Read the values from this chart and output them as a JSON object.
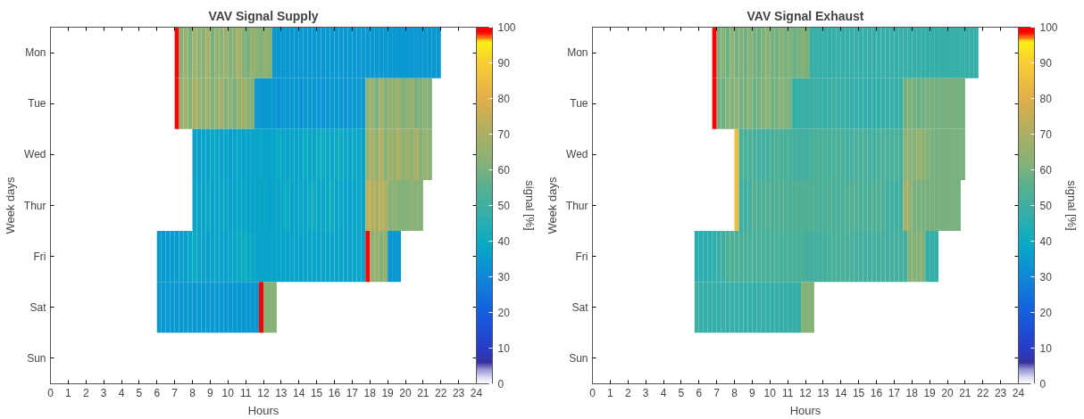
{
  "chart_data": [
    {
      "type": "heatmap",
      "title": "VAV Signal Supply",
      "xlabel": "Hours",
      "ylabel": "Week days",
      "clabel": "signal [%]",
      "x": [
        5.875,
        6.125,
        6.375,
        6.625,
        6.875,
        7.125,
        7.375,
        7.625,
        7.875,
        8.125,
        8.375,
        8.625,
        8.875,
        9.125,
        9.375,
        9.625,
        9.875,
        10.125,
        10.375,
        10.625,
        10.875,
        11.125,
        11.375,
        11.625,
        11.875,
        12.125,
        12.375,
        12.625,
        12.875,
        13.125,
        13.375,
        13.625,
        13.875,
        14.125,
        14.375,
        14.625,
        14.875,
        15.125,
        15.375,
        15.625,
        15.875,
        16.125,
        16.375,
        16.625,
        16.875,
        17.125,
        17.375,
        17.625,
        17.875,
        18.125,
        18.375,
        18.625,
        18.875,
        19.125,
        19.375,
        19.625,
        19.875,
        20.125,
        20.375,
        20.625,
        20.875,
        21.125,
        21.375,
        21.625,
        21.875
      ],
      "y_categories": [
        "Mon",
        "Tue",
        "Wed",
        "Thur",
        "Fri",
        "Sat",
        "Sun"
      ],
      "cells": [
        [
          null,
          null,
          null,
          null,
          null,
          100,
          62,
          66,
          60,
          68,
          64,
          62,
          70,
          60,
          65,
          63,
          67,
          61,
          64,
          69,
          62,
          60,
          66,
          63,
          61,
          65,
          62,
          34,
          34,
          34,
          34,
          34,
          34,
          34,
          34,
          34,
          34,
          34,
          34,
          34,
          34,
          34,
          34,
          34,
          34,
          34,
          34,
          34,
          34,
          34,
          34,
          34,
          34,
          34,
          34,
          34,
          34,
          34,
          34,
          34,
          34,
          34,
          34,
          34,
          34
        ],
        [
          null,
          null,
          null,
          null,
          null,
          100,
          64,
          68,
          62,
          70,
          66,
          63,
          67,
          61,
          65,
          69,
          62,
          64,
          60,
          66,
          68,
          63,
          62,
          34,
          33,
          34,
          35,
          34,
          33,
          34,
          34,
          35,
          34,
          33,
          34,
          35,
          34,
          34,
          33,
          34,
          35,
          34,
          34,
          33,
          34,
          35,
          34,
          34,
          64,
          66,
          60,
          68,
          62,
          65,
          63,
          67,
          61,
          64,
          66,
          60,
          62,
          63,
          61,
          null,
          null
        ],
        [
          null,
          null,
          null,
          null,
          null,
          null,
          null,
          null,
          null,
          37,
          36,
          38,
          37,
          39,
          38,
          37,
          38,
          36,
          38,
          39,
          37,
          38,
          38,
          37,
          39,
          38,
          37,
          38,
          40,
          38,
          37,
          39,
          38,
          38,
          40,
          39,
          38,
          41,
          40,
          39,
          38,
          40,
          41,
          39,
          38,
          40,
          39,
          38,
          66,
          70,
          64,
          72,
          62,
          68,
          65,
          71,
          63,
          67,
          64,
          70,
          62,
          66,
          63,
          null,
          null
        ],
        [
          null,
          null,
          null,
          null,
          null,
          null,
          null,
          null,
          null,
          38,
          37,
          38,
          39,
          37,
          38,
          38,
          39,
          37,
          38,
          38,
          39,
          38,
          37,
          38,
          38,
          39,
          37,
          38,
          38,
          39,
          40,
          38,
          38,
          39,
          38,
          40,
          41,
          38,
          39,
          40,
          41,
          38,
          39,
          38,
          37,
          38,
          39,
          38,
          74,
          72,
          70,
          73,
          71,
          62,
          63,
          62,
          61,
          62,
          63,
          62,
          62,
          null,
          null,
          null,
          null
        ],
        [
          null,
          35,
          35,
          35,
          35,
          35,
          36,
          36,
          38,
          40,
          38,
          37,
          36,
          37,
          38,
          37,
          37,
          38,
          39,
          40,
          41,
          40,
          39,
          38,
          38,
          37,
          38,
          37,
          38,
          38,
          37,
          38,
          38,
          37,
          38,
          38,
          38,
          37,
          38,
          38,
          37,
          38,
          38,
          37,
          37,
          38,
          38,
          37,
          100,
          64,
          66,
          62,
          65,
          34,
          34,
          34,
          null,
          null,
          null,
          null,
          null,
          null,
          null,
          null,
          null
        ],
        [
          null,
          34,
          34,
          34,
          34,
          34,
          34,
          34,
          34,
          34,
          34,
          34,
          34,
          34,
          34,
          34,
          34,
          34,
          34,
          34,
          34,
          34,
          34,
          34,
          100,
          62,
          62,
          62,
          null,
          null,
          null,
          null,
          null,
          null,
          null,
          null,
          null,
          null,
          null,
          null,
          null,
          null,
          null,
          null,
          null,
          null,
          null,
          null,
          null,
          null,
          null,
          null,
          null,
          null,
          null,
          null,
          null,
          null,
          null,
          null,
          null,
          null,
          null,
          null,
          null
        ],
        [
          null,
          null,
          null,
          null,
          null,
          null,
          null,
          null,
          null,
          null,
          null,
          null,
          null,
          null,
          null,
          null,
          null,
          null,
          null,
          null,
          null,
          null,
          null,
          null,
          null,
          null,
          null,
          null,
          null,
          null,
          null,
          null,
          null,
          null,
          null,
          null,
          null,
          null,
          null,
          null,
          null,
          null,
          null,
          null,
          null,
          null,
          null,
          null,
          null,
          null,
          null,
          null,
          null,
          null,
          null,
          null,
          null,
          null,
          null,
          null,
          null,
          null,
          null,
          null,
          null
        ]
      ],
      "xlim": [
        0,
        24
      ],
      "xticks": [
        0,
        1,
        2,
        3,
        4,
        5,
        6,
        7,
        8,
        9,
        10,
        11,
        12,
        13,
        14,
        15,
        16,
        17,
        18,
        19,
        20,
        21,
        22,
        23,
        24
      ],
      "clim": [
        0,
        100
      ],
      "cticks": [
        0,
        10,
        20,
        30,
        40,
        50,
        60,
        70,
        80,
        90,
        100
      ],
      "grid": false
    },
    {
      "type": "heatmap",
      "title": "VAV Signal Exhaust",
      "xlabel": "Hours",
      "ylabel": "Week days",
      "clabel": "signal [%]",
      "x": [
        5.875,
        6.125,
        6.375,
        6.625,
        6.875,
        7.125,
        7.375,
        7.625,
        7.875,
        8.125,
        8.375,
        8.625,
        8.875,
        9.125,
        9.375,
        9.625,
        9.875,
        10.125,
        10.375,
        10.625,
        10.875,
        11.125,
        11.375,
        11.625,
        11.875,
        12.125,
        12.375,
        12.625,
        12.875,
        13.125,
        13.375,
        13.625,
        13.875,
        14.125,
        14.375,
        14.625,
        14.875,
        15.125,
        15.375,
        15.625,
        15.875,
        16.125,
        16.375,
        16.625,
        16.875,
        17.125,
        17.375,
        17.625,
        17.875,
        18.125,
        18.375,
        18.625,
        18.875,
        19.125,
        19.375,
        19.625,
        19.875,
        20.125,
        20.375,
        20.625,
        20.875,
        21.125,
        21.375,
        21.625,
        21.875
      ],
      "y_categories": [
        "Mon",
        "Tue",
        "Wed",
        "Thur",
        "Fri",
        "Sat",
        "Sun"
      ],
      "cells": [
        [
          null,
          null,
          null,
          null,
          100,
          60,
          62,
          58,
          63,
          60,
          61,
          59,
          62,
          60,
          58,
          61,
          63,
          60,
          59,
          62,
          60,
          61,
          58,
          60,
          62,
          60,
          48,
          48,
          48,
          48,
          48,
          48,
          48,
          48,
          48,
          48,
          48,
          48,
          48,
          48,
          48,
          48,
          48,
          48,
          48,
          48,
          48,
          48,
          48,
          48,
          48,
          48,
          48,
          48,
          48,
          48,
          48,
          48,
          48,
          48,
          48,
          48,
          48,
          48,
          null
        ],
        [
          null,
          null,
          null,
          null,
          100,
          60,
          58,
          62,
          61,
          64,
          59,
          60,
          62,
          58,
          60,
          61,
          63,
          59,
          60,
          62,
          61,
          60,
          47,
          48,
          49,
          49,
          50,
          49,
          49,
          48,
          49,
          50,
          49,
          49,
          48,
          47,
          47,
          47,
          47,
          47,
          47,
          47,
          48,
          48,
          48,
          48,
          48,
          60,
          61,
          60,
          58,
          59,
          60,
          60,
          60,
          59,
          60,
          60,
          60,
          59,
          60,
          null,
          null,
          null,
          null
        ],
        [
          null,
          null,
          null,
          null,
          null,
          null,
          null,
          null,
          null,
          85,
          52,
          52,
          53,
          52,
          51,
          51,
          51,
          52,
          53,
          53,
          52,
          52,
          51,
          51,
          51,
          51,
          52,
          53,
          53,
          52,
          52,
          53,
          53,
          52,
          51,
          51,
          52,
          52,
          52,
          51,
          51,
          52,
          52,
          52,
          52,
          52,
          51,
          64,
          63,
          62,
          66,
          64,
          62,
          60,
          60,
          60,
          60,
          60,
          60,
          60,
          60,
          null,
          null,
          null,
          null
        ],
        [
          null,
          null,
          null,
          null,
          null,
          null,
          null,
          null,
          null,
          85,
          50,
          50,
          51,
          55,
          53,
          53,
          54,
          54,
          54,
          54,
          54,
          53,
          54,
          54,
          54,
          54,
          54,
          54,
          52,
          53,
          54,
          53,
          52,
          53,
          54,
          54,
          54,
          53,
          52,
          53,
          54,
          54,
          53,
          50,
          50,
          50,
          50,
          68,
          66,
          60,
          60,
          60,
          60,
          60,
          60,
          60,
          60,
          60,
          60,
          60,
          null,
          null,
          null,
          null,
          null
        ],
        [
          46,
          46,
          46,
          46,
          47,
          49,
          50,
          52,
          54,
          53,
          53,
          52,
          52,
          52,
          52,
          52,
          52,
          52,
          52,
          52,
          52,
          52,
          52,
          52,
          53,
          51,
          51,
          51,
          51,
          51,
          52,
          52,
          52,
          52,
          52,
          52,
          51,
          51,
          51,
          51,
          51,
          51,
          51,
          51,
          51,
          51,
          51,
          51,
          62,
          62,
          62,
          62,
          48,
          48,
          48,
          null,
          null,
          null,
          null,
          null,
          null,
          null,
          null,
          null,
          null
        ],
        [
          50,
          48,
          48,
          48,
          48,
          48,
          48,
          48,
          48,
          48,
          48,
          48,
          48,
          48,
          48,
          48,
          48,
          48,
          48,
          48,
          48,
          48,
          48,
          48,
          62,
          62,
          62,
          null,
          null,
          null,
          null,
          null,
          null,
          null,
          null,
          null,
          null,
          null,
          null,
          null,
          null,
          null,
          null,
          null,
          null,
          null,
          null,
          null,
          null,
          null,
          null,
          null,
          null,
          null,
          null,
          null,
          null,
          null,
          null,
          null,
          null,
          null,
          null,
          null,
          null
        ],
        [
          null,
          null,
          null,
          null,
          null,
          null,
          null,
          null,
          null,
          null,
          null,
          null,
          null,
          null,
          null,
          null,
          null,
          null,
          null,
          null,
          null,
          null,
          null,
          null,
          null,
          null,
          null,
          null,
          null,
          null,
          null,
          null,
          null,
          null,
          null,
          null,
          null,
          null,
          null,
          null,
          null,
          null,
          null,
          null,
          null,
          null,
          null,
          null,
          null,
          null,
          null,
          null,
          null,
          null,
          null,
          null,
          null,
          null,
          null,
          null,
          null,
          null,
          null,
          null,
          null
        ]
      ],
      "xlim": [
        0,
        24
      ],
      "xticks": [
        0,
        1,
        2,
        3,
        4,
        5,
        6,
        7,
        8,
        9,
        10,
        11,
        12,
        13,
        14,
        15,
        16,
        17,
        18,
        19,
        20,
        21,
        22,
        23,
        24
      ],
      "clim": [
        0,
        100
      ],
      "cticks": [
        0,
        10,
        20,
        30,
        40,
        50,
        60,
        70,
        80,
        90,
        100
      ],
      "grid": false
    }
  ]
}
